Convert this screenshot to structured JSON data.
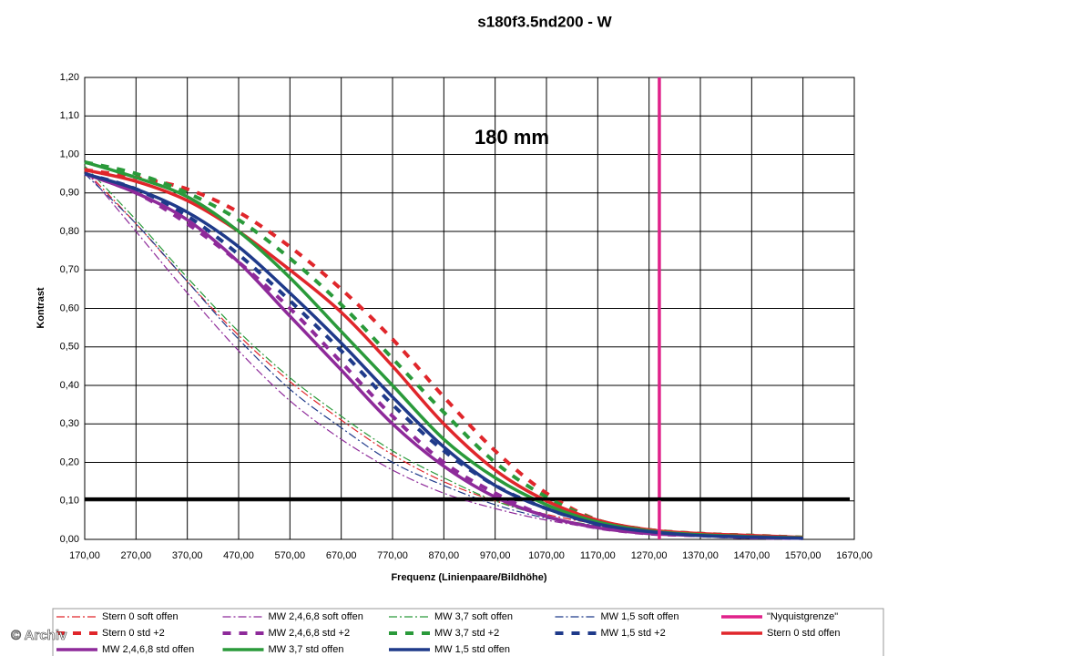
{
  "chart_data": {
    "type": "line",
    "title": "s180f3.5nd200 - W",
    "annotation": "180 mm",
    "x_label": "Frequenz (Linienpaare/Bildhöhe)",
    "y_label": "Kontrast",
    "credit": "© Archiv",
    "grid": true,
    "xlim": [
      170,
      1670
    ],
    "ylim": [
      0,
      1.2
    ],
    "xticks": [
      {
        "value": 170,
        "label": "170,00"
      },
      {
        "value": 270,
        "label": "270,00"
      },
      {
        "value": 370,
        "label": "370,00"
      },
      {
        "value": 470,
        "label": "470,00"
      },
      {
        "value": 570,
        "label": "570,00"
      },
      {
        "value": 670,
        "label": "670,00"
      },
      {
        "value": 770,
        "label": "770,00"
      },
      {
        "value": 870,
        "label": "870,00"
      },
      {
        "value": 970,
        "label": "970,00"
      },
      {
        "value": 1070,
        "label": "1070,00"
      },
      {
        "value": 1170,
        "label": "1170,00"
      },
      {
        "value": 1270,
        "label": "1270,00"
      },
      {
        "value": 1370,
        "label": "1370,00"
      },
      {
        "value": 1470,
        "label": "1470,00"
      },
      {
        "value": 1570,
        "label": "1570,00"
      },
      {
        "value": 1670,
        "label": "1670,00"
      }
    ],
    "yticks": [
      {
        "value": 0,
        "label": "0,00"
      },
      {
        "value": 0.1,
        "label": "0,10"
      },
      {
        "value": 0.2,
        "label": "0,20"
      },
      {
        "value": 0.3,
        "label": "0,30"
      },
      {
        "value": 0.4,
        "label": "0,40"
      },
      {
        "value": 0.5,
        "label": "0,50"
      },
      {
        "value": 0.6,
        "label": "0,60"
      },
      {
        "value": 0.7,
        "label": "0,70"
      },
      {
        "value": 0.8,
        "label": "0,80"
      },
      {
        "value": 0.9,
        "label": "0,90"
      },
      {
        "value": 1.0,
        "label": "1,00"
      },
      {
        "value": 1.1,
        "label": "1,10"
      },
      {
        "value": 1.2,
        "label": "1,20"
      }
    ],
    "hline": 0.105,
    "hline_color": "#000000",
    "x": [
      170,
      270,
      370,
      470,
      570,
      670,
      770,
      870,
      970,
      1070,
      1170,
      1270,
      1370,
      1470,
      1570
    ],
    "series": [
      {
        "name": "Stern 0 soft offen",
        "color": "#e0262b",
        "style": "dashdot",
        "values": [
          0.96,
          0.82,
          0.67,
          0.53,
          0.41,
          0.31,
          0.22,
          0.15,
          0.1,
          0.065,
          0.04,
          0.025,
          0.015,
          0.01,
          0.005
        ]
      },
      {
        "name": "MW 2,4,6,8 soft offen",
        "color": "#8e2a9a",
        "style": "dashdot",
        "values": [
          0.96,
          0.8,
          0.64,
          0.49,
          0.36,
          0.26,
          0.18,
          0.12,
          0.08,
          0.05,
          0.03,
          0.02,
          0.01,
          0.005,
          0.003
        ]
      },
      {
        "name": "MW 3,7 soft offen",
        "color": "#2a9a3a",
        "style": "dashdot",
        "values": [
          0.97,
          0.83,
          0.68,
          0.54,
          0.42,
          0.32,
          0.23,
          0.16,
          0.1,
          0.06,
          0.035,
          0.02,
          0.012,
          0.007,
          0.004
        ]
      },
      {
        "name": "MW 1,5 soft offen",
        "color": "#1f3a8a",
        "style": "dashdot",
        "values": [
          0.95,
          0.82,
          0.67,
          0.52,
          0.39,
          0.29,
          0.2,
          0.14,
          0.09,
          0.055,
          0.035,
          0.02,
          0.012,
          0.007,
          0.004
        ]
      },
      {
        "name": "\"Nyquistgrenze\"",
        "color": "#e0218a",
        "style": "vline",
        "x_value": 1290
      },
      {
        "name": "Stern 0 std +2",
        "color": "#e0262b",
        "style": "dash",
        "values": [
          0.96,
          0.94,
          0.91,
          0.85,
          0.76,
          0.65,
          0.52,
          0.37,
          0.23,
          0.12,
          0.05,
          0.025,
          0.015,
          0.01,
          0.005
        ]
      },
      {
        "name": "MW 2,4,6,8 std +2",
        "color": "#8e2a9a",
        "style": "dash",
        "values": [
          0.95,
          0.9,
          0.82,
          0.72,
          0.6,
          0.46,
          0.32,
          0.2,
          0.12,
          0.06,
          0.03,
          0.015,
          0.01,
          0.005,
          0.003
        ]
      },
      {
        "name": "MW 3,7 std +2",
        "color": "#2a9a3a",
        "style": "dash",
        "values": [
          0.98,
          0.95,
          0.9,
          0.83,
          0.73,
          0.61,
          0.47,
          0.33,
          0.2,
          0.11,
          0.05,
          0.025,
          0.015,
          0.01,
          0.005
        ]
      },
      {
        "name": "MW 1,5 std +2",
        "color": "#1f3a8a",
        "style": "dash",
        "values": [
          0.95,
          0.91,
          0.84,
          0.74,
          0.62,
          0.49,
          0.35,
          0.23,
          0.14,
          0.08,
          0.04,
          0.02,
          0.01,
          0.006,
          0.003
        ]
      },
      {
        "name": "Stern 0 std offen",
        "color": "#e0262b",
        "style": "solid",
        "values": [
          0.96,
          0.93,
          0.88,
          0.8,
          0.7,
          0.59,
          0.45,
          0.3,
          0.18,
          0.1,
          0.05,
          0.025,
          0.015,
          0.01,
          0.005
        ]
      },
      {
        "name": "MW 2,4,6,8 std offen",
        "color": "#8e2a9a",
        "style": "solid",
        "values": [
          0.95,
          0.9,
          0.83,
          0.72,
          0.58,
          0.44,
          0.3,
          0.19,
          0.11,
          0.06,
          0.03,
          0.015,
          0.01,
          0.005,
          0.003
        ]
      },
      {
        "name": "MW 3,7 std offen",
        "color": "#2a9a3a",
        "style": "solid",
        "values": [
          0.98,
          0.94,
          0.89,
          0.8,
          0.68,
          0.54,
          0.4,
          0.26,
          0.16,
          0.09,
          0.045,
          0.022,
          0.012,
          0.007,
          0.004
        ]
      },
      {
        "name": "MW 1,5 std offen",
        "color": "#1f3a8a",
        "style": "solid",
        "values": [
          0.95,
          0.91,
          0.85,
          0.76,
          0.64,
          0.51,
          0.37,
          0.24,
          0.14,
          0.08,
          0.04,
          0.02,
          0.01,
          0.006,
          0.003
        ]
      }
    ]
  }
}
